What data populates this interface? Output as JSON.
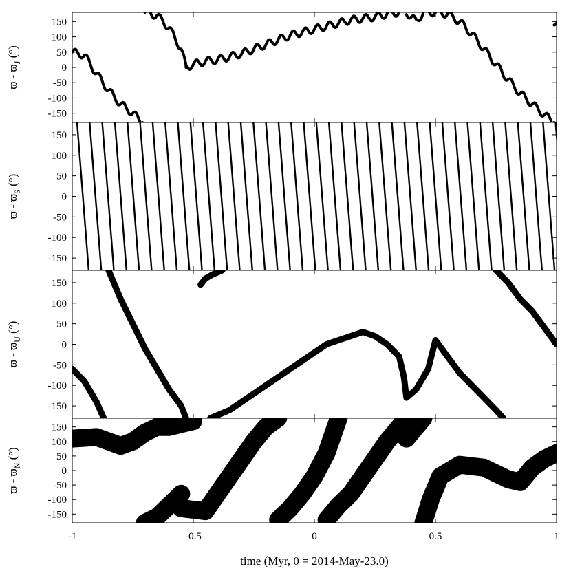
{
  "chart_data": {
    "type": "line",
    "xlabel": "time (Myr, 0 = 2014-May-23.0)",
    "xlim": [
      -1,
      1
    ],
    "x_ticks": [
      -1,
      -0.5,
      0,
      0.5,
      1
    ],
    "x_tick_labels": [
      "-1",
      "-0.5",
      "0",
      "0.5",
      "1"
    ],
    "colors": {
      "line": "#000000",
      "background": "#ffffff"
    },
    "panels": [
      {
        "id": "J",
        "ylabel": {
          "main": "ϖ - ϖ",
          "sub": "J",
          "unit": "(°)"
        },
        "ylim": [
          -180,
          180
        ],
        "y_ticks": [
          150,
          100,
          50,
          0,
          -50,
          -100,
          -150
        ],
        "band": 4,
        "series": [
          {
            "x": [
              -1.0,
              -0.95,
              -0.9,
              -0.85,
              -0.8,
              -0.75,
              -0.71
            ],
            "y": [
              50,
              40,
              -20,
              -75,
              -120,
              -150,
              -180
            ]
          },
          {
            "x": [
              -0.7,
              -0.65,
              -0.6,
              -0.55,
              -0.53
            ],
            "y": [
              180,
              170,
              130,
              60,
              0
            ]
          },
          {
            "x": [
              -0.53,
              -0.5,
              -0.45,
              -0.4,
              -0.35,
              -0.3,
              -0.25,
              -0.2,
              -0.15,
              -0.1,
              -0.05,
              0.0,
              0.05,
              0.1,
              0.15,
              0.2,
              0.25,
              0.3,
              0.35
            ],
            "y": [
              0,
              10,
              20,
              25,
              35,
              45,
              60,
              75,
              90,
              105,
              115,
              125,
              135,
              145,
              155,
              160,
              165,
              175,
              180
            ]
          },
          {
            "x": [
              0.38,
              0.42,
              0.45,
              0.5,
              0.55,
              0.6,
              0.65,
              0.7,
              0.75,
              0.8,
              0.85,
              0.9,
              0.95,
              0.99
            ],
            "y": [
              180,
              150,
              180,
              180,
              175,
              150,
              110,
              60,
              10,
              -40,
              -85,
              -120,
              -155,
              -180
            ]
          },
          {
            "x": [
              0.99,
              1.0
            ],
            "y": [
              150,
              145
            ]
          }
        ],
        "oscillation": {
          "amplitude": 12,
          "period": 0.05
        }
      },
      {
        "id": "S",
        "ylabel": {
          "main": "ϖ - ϖ",
          "sub": "S",
          "unit": "(°)"
        },
        "ylim": [
          -180,
          180
        ],
        "y_ticks": [
          150,
          100,
          50,
          0,
          -50,
          -100,
          -150
        ],
        "band": 4,
        "circulation": {
          "direction": "decreasing",
          "wrap_times": [
            -0.98,
            -0.928,
            -0.876,
            -0.824,
            -0.772,
            -0.72,
            -0.668,
            -0.616,
            -0.564,
            -0.512,
            -0.46,
            -0.408,
            -0.356,
            -0.304,
            -0.252,
            -0.2,
            -0.148,
            -0.096,
            -0.044,
            0.008,
            0.06,
            0.112,
            0.164,
            0.216,
            0.268,
            0.32,
            0.372,
            0.424,
            0.476,
            0.528,
            0.58,
            0.632,
            0.684,
            0.736,
            0.788,
            0.84,
            0.892,
            0.944,
            0.996
          ],
          "period_myr": 0.052
        }
      },
      {
        "id": "U",
        "ylabel": {
          "main": "ϖ - ϖ",
          "sub": "U",
          "unit": "(°)"
        },
        "ylim": [
          -180,
          180
        ],
        "y_ticks": [
          150,
          100,
          50,
          0,
          -50,
          -100,
          -150
        ],
        "band": 9,
        "series": [
          {
            "x": [
              -1.0,
              -0.95,
              -0.9,
              -0.87
            ],
            "y": [
              -60,
              -90,
              -140,
              -180
            ]
          },
          {
            "x": [
              -0.85,
              -0.8,
              -0.75,
              -0.7,
              -0.65,
              -0.6,
              -0.55,
              -0.53
            ],
            "y": [
              180,
              110,
              50,
              -10,
              -60,
              -110,
              -150,
              -180
            ]
          },
          {
            "x": [
              -0.47,
              -0.45,
              -0.42,
              -0.38
            ],
            "y": [
              145,
              160,
              170,
              180
            ]
          },
          {
            "x": [
              -0.43,
              -0.35,
              -0.3,
              -0.25,
              -0.2,
              -0.15,
              -0.1,
              -0.05,
              0.0,
              0.05,
              0.1,
              0.15,
              0.2,
              0.25,
              0.3,
              0.35,
              0.37
            ],
            "y": [
              -180,
              -160,
              -140,
              -120,
              -100,
              -80,
              -60,
              -40,
              -20,
              0,
              10,
              20,
              30,
              20,
              0,
              -30,
              -80
            ]
          },
          {
            "x": [
              0.37,
              0.38,
              0.42,
              0.47,
              0.5,
              0.55,
              0.6,
              0.65,
              0.7,
              0.75,
              0.78
            ],
            "y": [
              -80,
              -130,
              -110,
              -60,
              10,
              -30,
              -70,
              -100,
              -130,
              -160,
              -180
            ]
          },
          {
            "x": [
              0.75,
              0.8,
              0.85,
              0.9,
              0.95,
              1.0
            ],
            "y": [
              180,
              150,
              110,
              80,
              40,
              0
            ]
          }
        ]
      },
      {
        "id": "N",
        "ylabel": {
          "main": "ϖ - ϖ",
          "sub": "N",
          "unit": "(°)"
        },
        "ylim": [
          -180,
          180
        ],
        "y_ticks": [
          150,
          100,
          50,
          0,
          -50,
          -100,
          -150
        ],
        "band": 26,
        "series": [
          {
            "x": [
              -1.0,
              -0.9,
              -0.8,
              -0.75,
              -0.7,
              -0.65,
              -0.6,
              -0.55,
              -0.5
            ],
            "y": [
              110,
              115,
              85,
              100,
              130,
              150,
              150,
              160,
              170
            ]
          },
          {
            "x": [
              -0.7,
              -0.65,
              -0.6,
              -0.55
            ],
            "y": [
              -180,
              -160,
              -120,
              -80
            ]
          },
          {
            "x": [
              -0.55,
              -0.45,
              -0.35,
              -0.25,
              -0.2,
              -0.15
            ],
            "y": [
              -130,
              -140,
              -20,
              100,
              150,
              180
            ]
          },
          {
            "x": [
              -0.15,
              -0.1,
              -0.05,
              0.0,
              0.05,
              0.1
            ],
            "y": [
              -170,
              -130,
              -80,
              -20,
              60,
              180
            ]
          },
          {
            "x": [
              0.05,
              0.1,
              0.15,
              0.2,
              0.25,
              0.3,
              0.35,
              0.38
            ],
            "y": [
              -170,
              -120,
              -80,
              -20,
              40,
              100,
              150,
              180
            ]
          },
          {
            "x": [
              0.36,
              0.38,
              0.42,
              0.45
            ],
            "y": [
              140,
              110,
              150,
              180
            ]
          },
          {
            "x": [
              0.45,
              0.48,
              0.52,
              0.6,
              0.7,
              0.8,
              0.85,
              0.9,
              0.95,
              1.0
            ],
            "y": [
              -180,
              -100,
              -20,
              20,
              10,
              -30,
              -40,
              10,
              40,
              60
            ]
          }
        ]
      }
    ]
  }
}
